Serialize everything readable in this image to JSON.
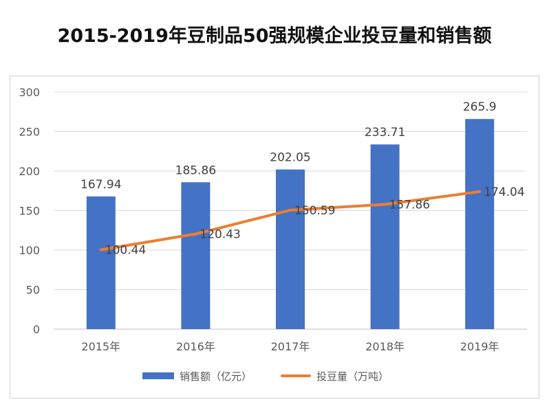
{
  "title": "2015-2019年豆制品50强规模企业投豆量和销售额",
  "chart_data": {
    "type": "bar",
    "categories": [
      "2015年",
      "2016年",
      "2017年",
      "2018年",
      "2019年"
    ],
    "series": [
      {
        "name": "销售额（亿元）",
        "type": "bar",
        "values": [
          167.94,
          185.86,
          202.05,
          233.71,
          265.9
        ],
        "labels": [
          "167.94",
          "185.86",
          "202.05",
          "233.71",
          "265.9"
        ],
        "color": "#4472C4"
      },
      {
        "name": "投豆量（万吨）",
        "type": "line",
        "values": [
          100.44,
          120.43,
          150.59,
          157.86,
          174.04
        ],
        "labels": [
          "100.44",
          "120.43",
          "150.59",
          "157.86",
          "174.04"
        ],
        "color": "#ED7D31"
      }
    ],
    "ylim": [
      0,
      300
    ],
    "yticks": [
      "0",
      "50",
      "100",
      "150",
      "200",
      "250",
      "300"
    ],
    "ytick_values": [
      0,
      50,
      100,
      150,
      200,
      250,
      300
    ],
    "grid": true,
    "legend": "bottom"
  }
}
